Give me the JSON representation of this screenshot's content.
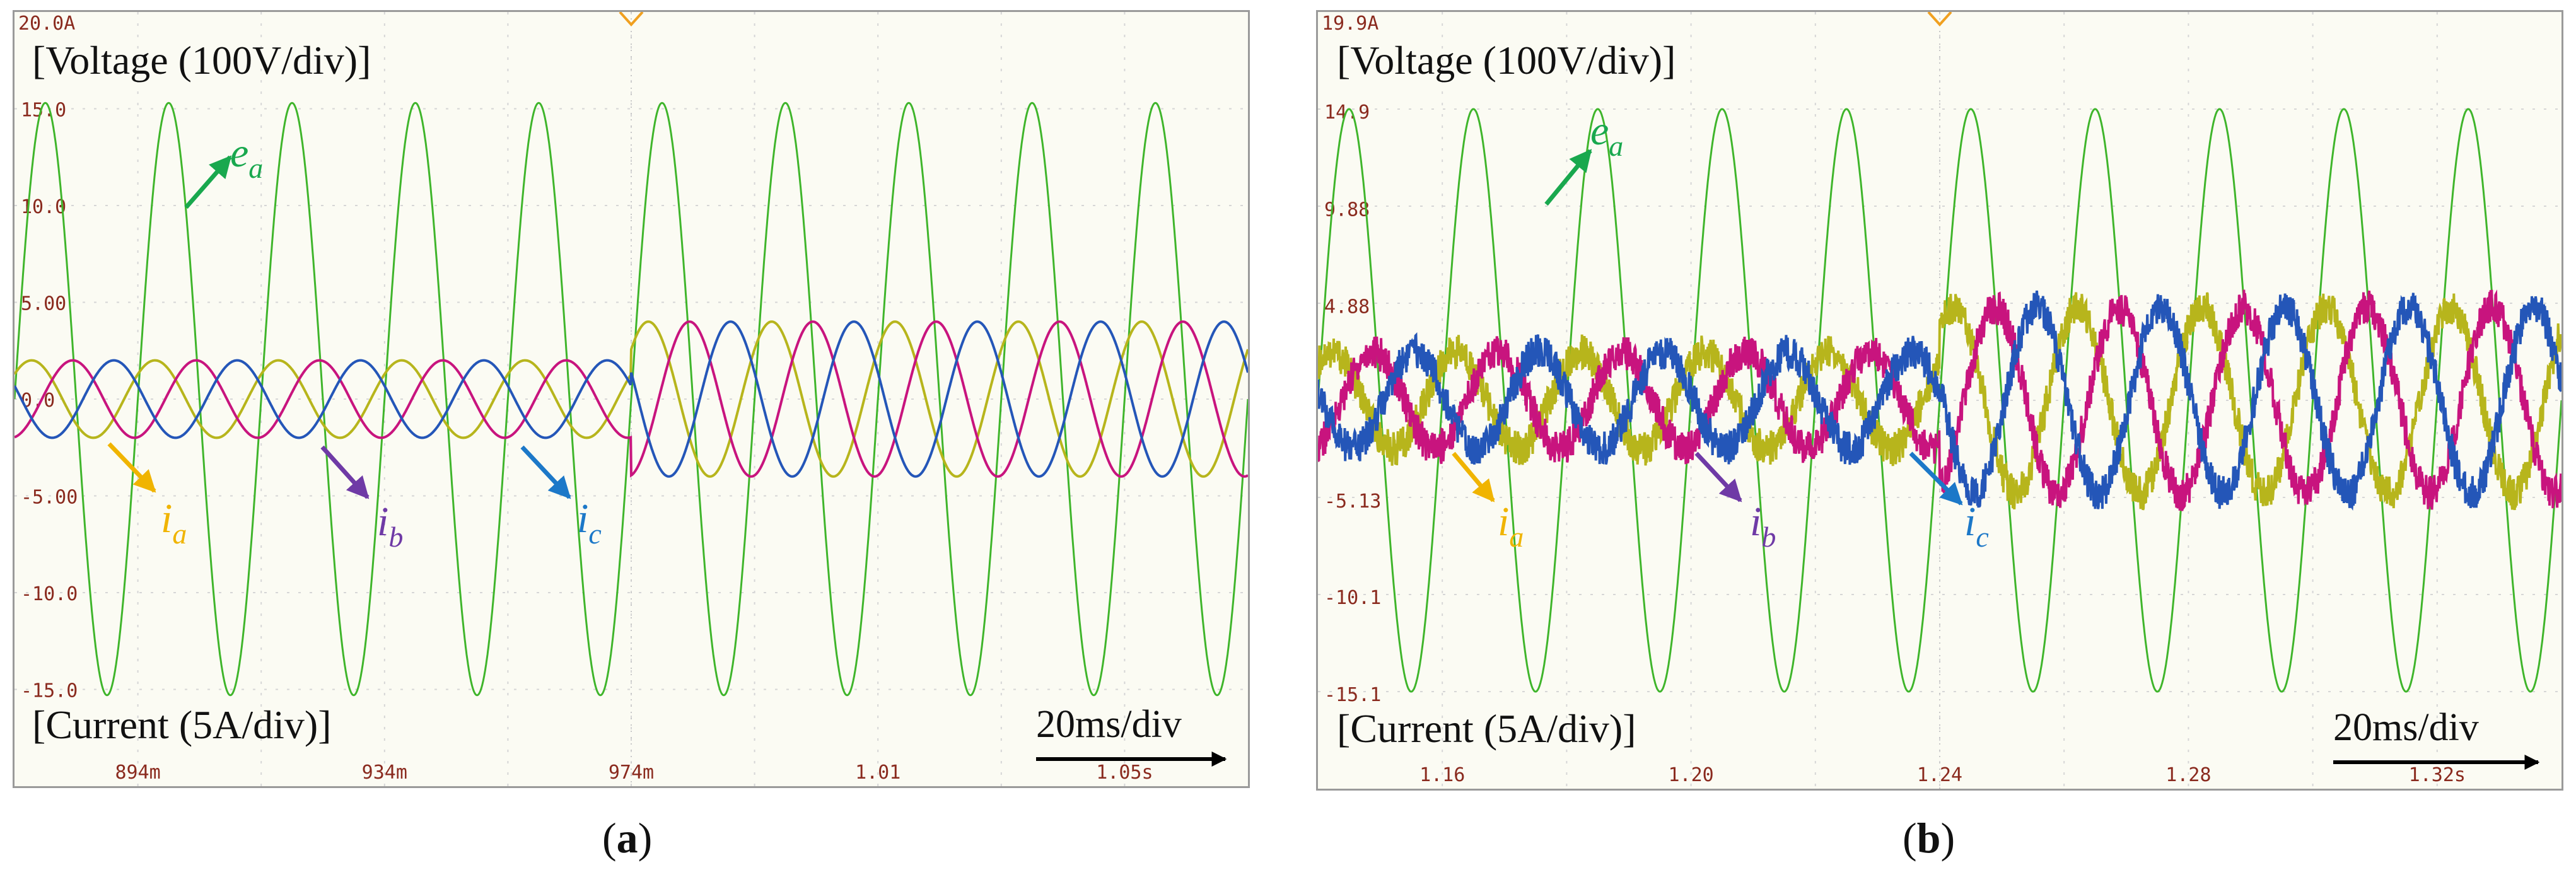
{
  "colors": {
    "voltage": "#3fb52b",
    "ia": "#b7b51c",
    "ib": "#c8147e",
    "ic": "#2456b8",
    "ea_label": "#19a84e",
    "ia_label": "#f0b400",
    "ib_label": "#6f3aa6",
    "ic_label": "#1c78c8",
    "tick_text": "#8a2a1e",
    "grid": "#d6d6d6"
  },
  "chart_data": [
    {
      "type": "line",
      "panel": "a",
      "caption": "a",
      "voltage_label": "[Voltage (100V/div)]",
      "current_label": "[Current (5A/div)]",
      "timebase_label": "20ms/div",
      "top_label": "20.0A",
      "y_ticks": [
        "15.0",
        "10.0",
        "5.00",
        "0.0",
        "-5.00",
        "-10.0",
        "-15.0"
      ],
      "y_tick_values": [
        15,
        10,
        5,
        0,
        -5,
        -10,
        -15
      ],
      "x_ticks": [
        "894m",
        "934m",
        "974m",
        "1.01",
        "1.05s"
      ],
      "x_tick_values": [
        0.894,
        0.934,
        0.974,
        1.014,
        1.054
      ],
      "xlim": [
        0.874,
        1.074
      ],
      "ylim": [
        -20,
        20
      ],
      "step_time": 0.974,
      "frequency_hz": 50,
      "series": [
        {
          "name": "e_a",
          "label": "e",
          "sub": "a",
          "kind": "voltage",
          "amplitude": 15.3,
          "amplitude_after": 15.3,
          "phase_deg": 0,
          "noise": 0
        },
        {
          "name": "i_a",
          "label": "i",
          "sub": "a",
          "kind": "current",
          "amplitude": 2.0,
          "amplitude_after": 4.0,
          "phase_deg": 40,
          "noise": 0
        },
        {
          "name": "i_b",
          "label": "i",
          "sub": "b",
          "kind": "current",
          "amplitude": 2.0,
          "amplitude_after": 4.0,
          "phase_deg": -80,
          "noise": 0
        },
        {
          "name": "i_c",
          "label": "i",
          "sub": "c",
          "kind": "current",
          "amplitude": 2.0,
          "amplitude_after": 4.0,
          "phase_deg": 160,
          "noise": 0
        }
      ]
    },
    {
      "type": "line",
      "panel": "b",
      "caption": "b",
      "voltage_label": "[Voltage (100V/div)]",
      "current_label": "[Current (5A/div)]",
      "timebase_label": "20ms/div",
      "top_label": "19.9A",
      "y_ticks": [
        "14.9",
        "9.88",
        "4.88",
        "",
        "-5.13",
        "-10.1",
        "-15.1"
      ],
      "y_tick_values": [
        14.9,
        9.88,
        4.88,
        0,
        -5.13,
        -10.1,
        -15.1
      ],
      "x_ticks": [
        "1.16",
        "1.20",
        "1.24",
        "1.28",
        "1.32s"
      ],
      "x_tick_values": [
        1.16,
        1.2,
        1.24,
        1.28,
        1.32
      ],
      "xlim": [
        1.14,
        1.34
      ],
      "ylim": [
        -20,
        20
      ],
      "step_time": 1.24,
      "frequency_hz": 50,
      "series": [
        {
          "name": "e_a",
          "label": "e",
          "sub": "a",
          "kind": "voltage",
          "amplitude": 15.0,
          "amplitude_after": 15.0,
          "phase_deg": 0,
          "noise": 0
        },
        {
          "name": "i_a",
          "label": "i",
          "sub": "a",
          "kind": "current",
          "amplitude": 2.5,
          "amplitude_after": 4.8,
          "phase_deg": 50,
          "noise": 0.9
        },
        {
          "name": "i_b",
          "label": "i",
          "sub": "b",
          "kind": "current",
          "amplitude": 2.5,
          "amplitude_after": 4.8,
          "phase_deg": -70,
          "noise": 0.9
        },
        {
          "name": "i_c",
          "label": "i",
          "sub": "c",
          "kind": "current",
          "amplitude": 2.5,
          "amplitude_after": 4.8,
          "phase_deg": 170,
          "noise": 0.9
        }
      ]
    }
  ]
}
